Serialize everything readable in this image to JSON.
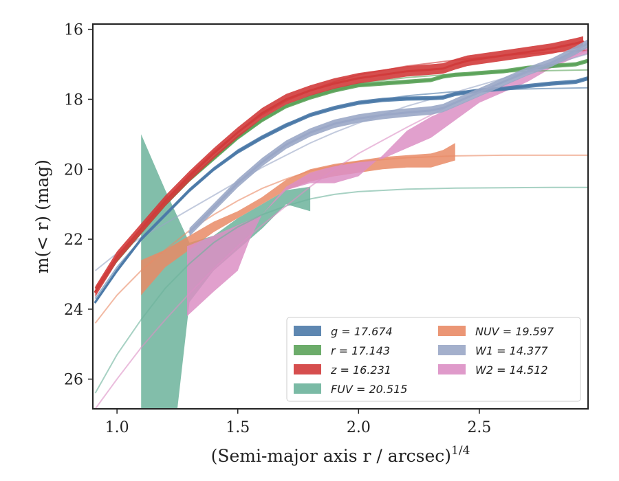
{
  "chart_data": {
    "type": "line",
    "title": "",
    "xlabel": "(Semi-major axis r / arcsec)",
    "xlabel_sup": "1/4",
    "ylabel": "m(< r) (mag)",
    "xlim": [
      0.9,
      2.95
    ],
    "ylim": [
      26.85,
      15.85
    ],
    "y_inverted": true,
    "grid": false,
    "legend_position": "lower-right",
    "x_ticks": [
      1.0,
      1.5,
      2.0,
      2.5
    ],
    "x_tick_labels": [
      "1.0",
      "1.5",
      "2.0",
      "2.5"
    ],
    "y_ticks": [
      16,
      18,
      20,
      22,
      24,
      26
    ],
    "y_tick_labels": [
      "16",
      "18",
      "20",
      "22",
      "24",
      "26"
    ],
    "series": [
      {
        "name": "g = 17.674",
        "color": "#4c7aa8",
        "curve_of_growth": {
          "x": [
            0.91,
            1.0,
            1.1,
            1.2,
            1.3,
            1.4,
            1.5,
            1.6,
            1.7,
            1.8,
            1.9,
            2.0,
            2.1,
            2.2,
            2.3,
            2.35,
            2.4,
            2.45,
            2.5,
            2.6,
            2.7,
            2.8,
            2.9,
            2.95
          ],
          "y": [
            23.8,
            22.9,
            22.0,
            21.3,
            20.6,
            20.0,
            19.5,
            19.1,
            18.75,
            18.45,
            18.25,
            18.1,
            18.02,
            17.98,
            17.97,
            17.95,
            17.85,
            17.8,
            17.75,
            17.7,
            17.62,
            17.55,
            17.5,
            17.4
          ],
          "band": 0.06
        },
        "model": {
          "x": [
            0.91,
            1.0,
            1.1,
            1.2,
            1.3,
            1.4,
            1.5,
            1.6,
            1.7,
            1.8,
            1.9,
            2.0,
            2.2,
            2.4,
            2.6,
            2.8,
            2.95
          ],
          "y": [
            23.7,
            22.8,
            22.0,
            21.3,
            20.6,
            20.0,
            19.45,
            19.05,
            18.7,
            18.45,
            18.25,
            18.1,
            17.9,
            17.78,
            17.72,
            17.69,
            17.67
          ]
        }
      },
      {
        "name": "r = 17.143",
        "color": "#5ca35a",
        "curve_of_growth": {
          "x": [
            0.91,
            1.0,
            1.1,
            1.2,
            1.3,
            1.4,
            1.5,
            1.6,
            1.7,
            1.8,
            1.9,
            2.0,
            2.1,
            2.2,
            2.3,
            2.35,
            2.4,
            2.45,
            2.5,
            2.6,
            2.7,
            2.8,
            2.9,
            2.95
          ],
          "y": [
            23.5,
            22.6,
            21.8,
            21.0,
            20.3,
            19.7,
            19.1,
            18.6,
            18.2,
            17.95,
            17.75,
            17.6,
            17.55,
            17.5,
            17.45,
            17.35,
            17.3,
            17.28,
            17.25,
            17.2,
            17.1,
            17.05,
            17.0,
            16.9
          ],
          "band": 0.06
        },
        "model": {
          "x": [
            0.91,
            1.0,
            1.1,
            1.2,
            1.3,
            1.4,
            1.5,
            1.6,
            1.7,
            1.8,
            1.9,
            2.0,
            2.2,
            2.4,
            2.6,
            2.8,
            2.95
          ],
          "y": [
            23.4,
            22.6,
            21.8,
            21.0,
            20.3,
            19.65,
            19.05,
            18.6,
            18.2,
            17.9,
            17.7,
            17.55,
            17.38,
            17.28,
            17.22,
            17.18,
            17.16
          ]
        }
      },
      {
        "name": "z = 16.231",
        "color": "#d13b3b",
        "curve_of_growth": {
          "x": [
            0.91,
            1.0,
            1.1,
            1.2,
            1.3,
            1.4,
            1.5,
            1.6,
            1.7,
            1.8,
            1.9,
            2.0,
            2.1,
            2.2,
            2.3,
            2.35,
            2.4,
            2.45,
            2.5,
            2.6,
            2.7,
            2.8,
            2.9,
            2.93
          ],
          "y": [
            23.5,
            22.5,
            21.7,
            20.9,
            20.2,
            19.55,
            18.95,
            18.4,
            18.0,
            17.75,
            17.55,
            17.4,
            17.3,
            17.2,
            17.15,
            17.12,
            17.0,
            16.9,
            16.85,
            16.75,
            16.65,
            16.55,
            16.4,
            16.35
          ],
          "band": 0.15
        },
        "model": {
          "x": [
            0.91,
            1.0,
            1.1,
            1.2,
            1.3,
            1.4,
            1.5,
            1.6,
            1.7,
            1.8,
            1.9,
            2.0,
            2.2,
            2.4,
            2.6,
            2.8,
            2.95
          ],
          "y": [
            23.4,
            22.5,
            21.7,
            20.9,
            20.15,
            19.5,
            18.95,
            18.45,
            18.05,
            17.75,
            17.5,
            17.3,
            17.05,
            16.88,
            16.75,
            16.65,
            16.6
          ]
        }
      },
      {
        "name": "FUV = 20.515",
        "color": "#6cb39b",
        "band_polygon": {
          "x": [
            1.1,
            1.2,
            1.3,
            1.4,
            1.5,
            1.6,
            1.7,
            1.8,
            1.8,
            1.7,
            1.6,
            1.5,
            1.4,
            1.3,
            1.25,
            1.18,
            1.1
          ],
          "y": [
            19.0,
            20.6,
            22.1,
            21.9,
            21.4,
            21.0,
            20.6,
            20.5,
            21.2,
            21.0,
            21.7,
            22.3,
            22.9,
            23.8,
            26.85,
            26.85,
            26.85
          ]
        },
        "model": {
          "x": [
            0.91,
            1.0,
            1.1,
            1.2,
            1.3,
            1.4,
            1.5,
            1.6,
            1.7,
            1.8,
            1.9,
            2.0,
            2.2,
            2.4,
            2.6,
            2.8,
            2.95
          ],
          "y": [
            26.4,
            25.3,
            24.3,
            23.4,
            22.7,
            22.1,
            21.65,
            21.3,
            21.05,
            20.85,
            20.72,
            20.64,
            20.57,
            20.54,
            20.53,
            20.52,
            20.52
          ]
        }
      },
      {
        "name": "NUV = 19.597",
        "color": "#e98b66",
        "band_polygon": {
          "x": [
            1.1,
            1.2,
            1.3,
            1.4,
            1.5,
            1.6,
            1.7,
            1.8,
            1.9,
            2.0,
            2.1,
            2.2,
            2.3,
            2.35,
            2.4,
            2.4,
            2.35,
            2.3,
            2.2,
            2.1,
            2.0,
            1.9,
            1.8,
            1.7,
            1.6,
            1.5,
            1.4,
            1.3,
            1.2,
            1.1
          ],
          "y": [
            22.6,
            22.3,
            21.9,
            21.5,
            21.2,
            20.8,
            20.3,
            20.0,
            19.85,
            19.75,
            19.65,
            19.6,
            19.55,
            19.45,
            19.25,
            19.75,
            19.85,
            19.95,
            19.95,
            20.0,
            20.1,
            20.2,
            20.35,
            20.6,
            21.0,
            21.4,
            21.8,
            22.3,
            22.8,
            23.6
          ]
        },
        "model": {
          "x": [
            0.91,
            1.0,
            1.1,
            1.2,
            1.3,
            1.4,
            1.5,
            1.6,
            1.7,
            1.8,
            1.9,
            2.0,
            2.2,
            2.4,
            2.6,
            2.8,
            2.95
          ],
          "y": [
            24.4,
            23.6,
            22.9,
            22.3,
            21.75,
            21.3,
            20.9,
            20.55,
            20.28,
            20.05,
            19.9,
            19.78,
            19.67,
            19.62,
            19.6,
            19.6,
            19.6
          ]
        }
      },
      {
        "name": "W1 = 14.377",
        "color": "#9aa7c7",
        "curve_of_growth": {
          "x": [
            1.3,
            1.4,
            1.5,
            1.6,
            1.7,
            1.8,
            1.9,
            2.0,
            2.1,
            2.2,
            2.3,
            2.35,
            2.4,
            2.5,
            2.6,
            2.7,
            2.8,
            2.9,
            2.95
          ],
          "y": [
            21.8,
            21.1,
            20.4,
            19.8,
            19.3,
            18.95,
            18.7,
            18.55,
            18.45,
            18.38,
            18.32,
            18.25,
            18.1,
            17.8,
            17.5,
            17.2,
            16.95,
            16.6,
            16.4
          ],
          "band": 0.12
        },
        "model": {
          "x": [
            0.91,
            1.0,
            1.1,
            1.2,
            1.3,
            1.4,
            1.5,
            1.6,
            1.7,
            1.8,
            1.9,
            2.0,
            2.2,
            2.4,
            2.6,
            2.8,
            2.95
          ],
          "y": [
            22.9,
            22.4,
            21.95,
            21.55,
            21.15,
            20.75,
            20.35,
            19.95,
            19.6,
            19.25,
            18.95,
            18.68,
            18.2,
            17.8,
            17.4,
            17.0,
            16.7
          ]
        }
      },
      {
        "name": "W2 = 14.512",
        "color": "#dc8fc4",
        "band_polygon": {
          "x": [
            1.29,
            1.4,
            1.5,
            1.6,
            1.7,
            1.8,
            1.9,
            2.0,
            2.1,
            2.2,
            2.3,
            2.4,
            2.5,
            2.6,
            2.7,
            2.8,
            2.9,
            2.95,
            2.95,
            2.9,
            2.8,
            2.7,
            2.6,
            2.5,
            2.4,
            2.3,
            2.2,
            2.1,
            2.0,
            1.9,
            1.8,
            1.7,
            1.6,
            1.55,
            1.5,
            1.4,
            1.29
          ],
          "y": [
            22.2,
            21.9,
            21.6,
            21.3,
            20.5,
            20.1,
            19.9,
            19.8,
            19.7,
            19.4,
            19.1,
            18.6,
            18.1,
            17.8,
            17.5,
            17.1,
            16.8,
            16.7,
            16.5,
            16.6,
            17.0,
            17.3,
            17.6,
            17.9,
            18.2,
            18.5,
            18.9,
            19.6,
            20.2,
            20.4,
            20.4,
            20.6,
            21.3,
            22.0,
            22.9,
            23.5,
            24.2
          ]
        },
        "model": {
          "x": [
            0.91,
            1.0,
            1.1,
            1.2,
            1.3,
            1.4,
            1.5,
            1.6,
            1.7,
            1.8,
            1.9,
            2.0,
            2.2,
            2.4,
            2.6,
            2.8,
            2.95
          ],
          "y": [
            26.85,
            26.0,
            25.1,
            24.3,
            23.55,
            22.85,
            22.2,
            21.6,
            21.05,
            20.5,
            20.0,
            19.55,
            18.8,
            18.1,
            17.5,
            17.0,
            16.6
          ]
        }
      }
    ],
    "legend": {
      "columns": [
        [
          "g = 17.674",
          "r = 17.143",
          "z = 16.231",
          "FUV = 20.515"
        ],
        [
          "NUV = 19.597",
          "W1 = 14.377",
          "W2 = 14.512"
        ]
      ]
    }
  }
}
